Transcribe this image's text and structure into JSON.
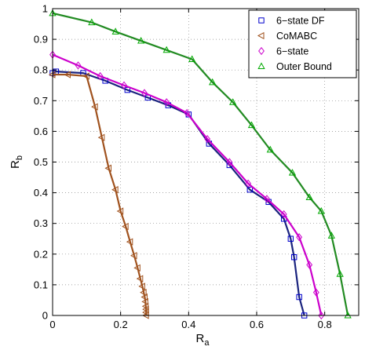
{
  "chart_data": {
    "type": "line",
    "xlabel": "R",
    "xlabel_sub": "a",
    "ylabel": "R",
    "ylabel_sub": "b",
    "xlim": [
      0,
      0.9
    ],
    "ylim": [
      0,
      1
    ],
    "xticks": [
      {
        "value": 0,
        "label": "0"
      },
      {
        "value": 0.2,
        "label": "0.2"
      },
      {
        "value": 0.4,
        "label": "0.4"
      },
      {
        "value": 0.6,
        "label": "0.6"
      },
      {
        "value": 0.8,
        "label": "0.8"
      }
    ],
    "yticks": [
      {
        "value": 0,
        "label": "0"
      },
      {
        "value": 0.1,
        "label": "0.1"
      },
      {
        "value": 0.2,
        "label": "0.2"
      },
      {
        "value": 0.3,
        "label": "0.3"
      },
      {
        "value": 0.4,
        "label": "0.4"
      },
      {
        "value": 0.5,
        "label": "0.5"
      },
      {
        "value": 0.6,
        "label": "0.6"
      },
      {
        "value": 0.7,
        "label": "0.7"
      },
      {
        "value": 0.8,
        "label": "0.8"
      },
      {
        "value": 0.9,
        "label": "0.9"
      },
      {
        "value": 1,
        "label": "1"
      }
    ],
    "grid": true,
    "legend_position": "top-right",
    "series": [
      {
        "name": "6−state DF",
        "line_color": "#1a237e",
        "marker_color": "#0000cc",
        "marker": "square",
        "x": [
          0.0,
          0.01,
          0.09,
          0.155,
          0.22,
          0.28,
          0.34,
          0.4,
          0.46,
          0.52,
          0.58,
          0.635,
          0.68,
          0.7,
          0.71,
          0.725,
          0.74
        ],
        "y": [
          0.79,
          0.795,
          0.79,
          0.765,
          0.735,
          0.71,
          0.685,
          0.655,
          0.56,
          0.49,
          0.41,
          0.37,
          0.315,
          0.25,
          0.19,
          0.06,
          0.0
        ]
      },
      {
        "name": "CoMABC",
        "line_color": "#a0521e",
        "marker_color": "#a0521e",
        "marker": "triangle-left",
        "x": [
          0.0,
          0.045,
          0.1,
          0.125,
          0.145,
          0.165,
          0.185,
          0.2,
          0.215,
          0.228,
          0.24,
          0.25,
          0.258,
          0.264,
          0.268,
          0.271,
          0.273,
          0.274,
          0.275,
          0.275,
          0.275
        ],
        "y": [
          0.785,
          0.785,
          0.78,
          0.68,
          0.58,
          0.48,
          0.41,
          0.34,
          0.29,
          0.24,
          0.195,
          0.155,
          0.12,
          0.095,
          0.075,
          0.06,
          0.045,
          0.03,
          0.02,
          0.01,
          0.0
        ]
      },
      {
        "name": "6−state",
        "line_color": "#cc00cc",
        "marker_color": "#cc00cc",
        "marker": "diamond",
        "x": [
          0.0,
          0.075,
          0.14,
          0.21,
          0.27,
          0.335,
          0.395,
          0.455,
          0.52,
          0.575,
          0.63,
          0.68,
          0.725,
          0.755,
          0.775,
          0.79
        ],
        "y": [
          0.85,
          0.815,
          0.78,
          0.75,
          0.725,
          0.695,
          0.66,
          0.575,
          0.5,
          0.43,
          0.38,
          0.33,
          0.255,
          0.165,
          0.075,
          0.0
        ]
      },
      {
        "name": "Outer Bound",
        "line_color": "#228b22",
        "marker_color": "#00aa00",
        "marker": "triangle-up",
        "x": [
          0.0,
          0.115,
          0.185,
          0.26,
          0.335,
          0.41,
          0.47,
          0.53,
          0.585,
          0.64,
          0.705,
          0.755,
          0.79,
          0.82,
          0.845,
          0.868
        ],
        "y": [
          0.985,
          0.955,
          0.925,
          0.895,
          0.865,
          0.835,
          0.76,
          0.695,
          0.62,
          0.54,
          0.465,
          0.385,
          0.34,
          0.26,
          0.135,
          0.0
        ]
      }
    ]
  }
}
